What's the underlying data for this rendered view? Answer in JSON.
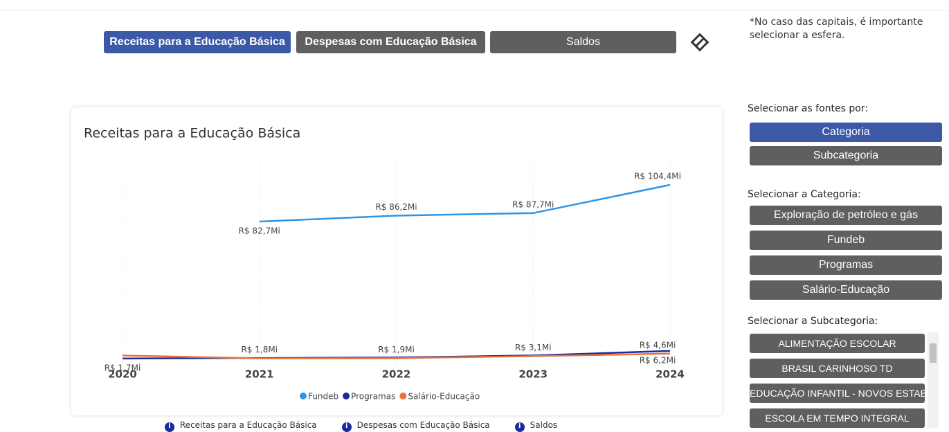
{
  "tabs": [
    "Receitas para a Educação Básica",
    "Despesas com Educação Básica",
    "Saldos"
  ],
  "note": "*No caso das capitais, é importante selecionar a esfera.",
  "chart_data": {
    "type": "line",
    "title": "Receitas para a Educação Básica",
    "categories": [
      "2020",
      "2021",
      "2022",
      "2023",
      "2024"
    ],
    "series": [
      {
        "name": "Fundeb",
        "color": "#2b95e9",
        "values": [
          null,
          82.7,
          86.2,
          87.7,
          104.4
        ],
        "value_labels": [
          null,
          "R$ 82,7Mi",
          "R$ 86,2Mi",
          "R$ 87,7Mi",
          "R$ 104,4Mi"
        ]
      },
      {
        "name": "Programas",
        "color": "#1b2a9c",
        "values": [
          1.7,
          2.0,
          2.3,
          3.5,
          6.2
        ],
        "value_labels": [
          "R$ 1,7Mi",
          null,
          null,
          null,
          "R$ 6,2Mi"
        ]
      },
      {
        "name": "Salário-Educação",
        "color": "#e8733a",
        "values": [
          3.5,
          1.8,
          1.9,
          3.1,
          4.6
        ],
        "value_labels": [
          null,
          "R$ 1,8Mi",
          "R$ 1,9Mi",
          "R$ 3,1Mi",
          "R$ 4,6Mi"
        ]
      }
    ],
    "grid": true
  },
  "panel": {
    "sources_heading": "Selecionar as fontes por:",
    "sources": [
      "Categoria",
      "Subcategoria"
    ],
    "category_heading": "Selecionar a Categoria:",
    "categories": [
      "Exploração de petróleo e gás",
      "Fundeb",
      "Programas",
      "Salário-Educação"
    ],
    "subcategory_heading": "Selecionar a Subcategoria:",
    "subcategories": [
      "ALIMENTAÇÃO ESCOLAR",
      "BRASIL CARINHOSO TD",
      "EDUCAÇÃO INFANTIL - NOVOS ESTABELECIMENTOS",
      "ESCOLA EM TEMPO INTEGRAL"
    ]
  },
  "info_links": [
    "Receitas para a Educação Básica",
    "Despesas com Educação Básica",
    "Saldos"
  ]
}
